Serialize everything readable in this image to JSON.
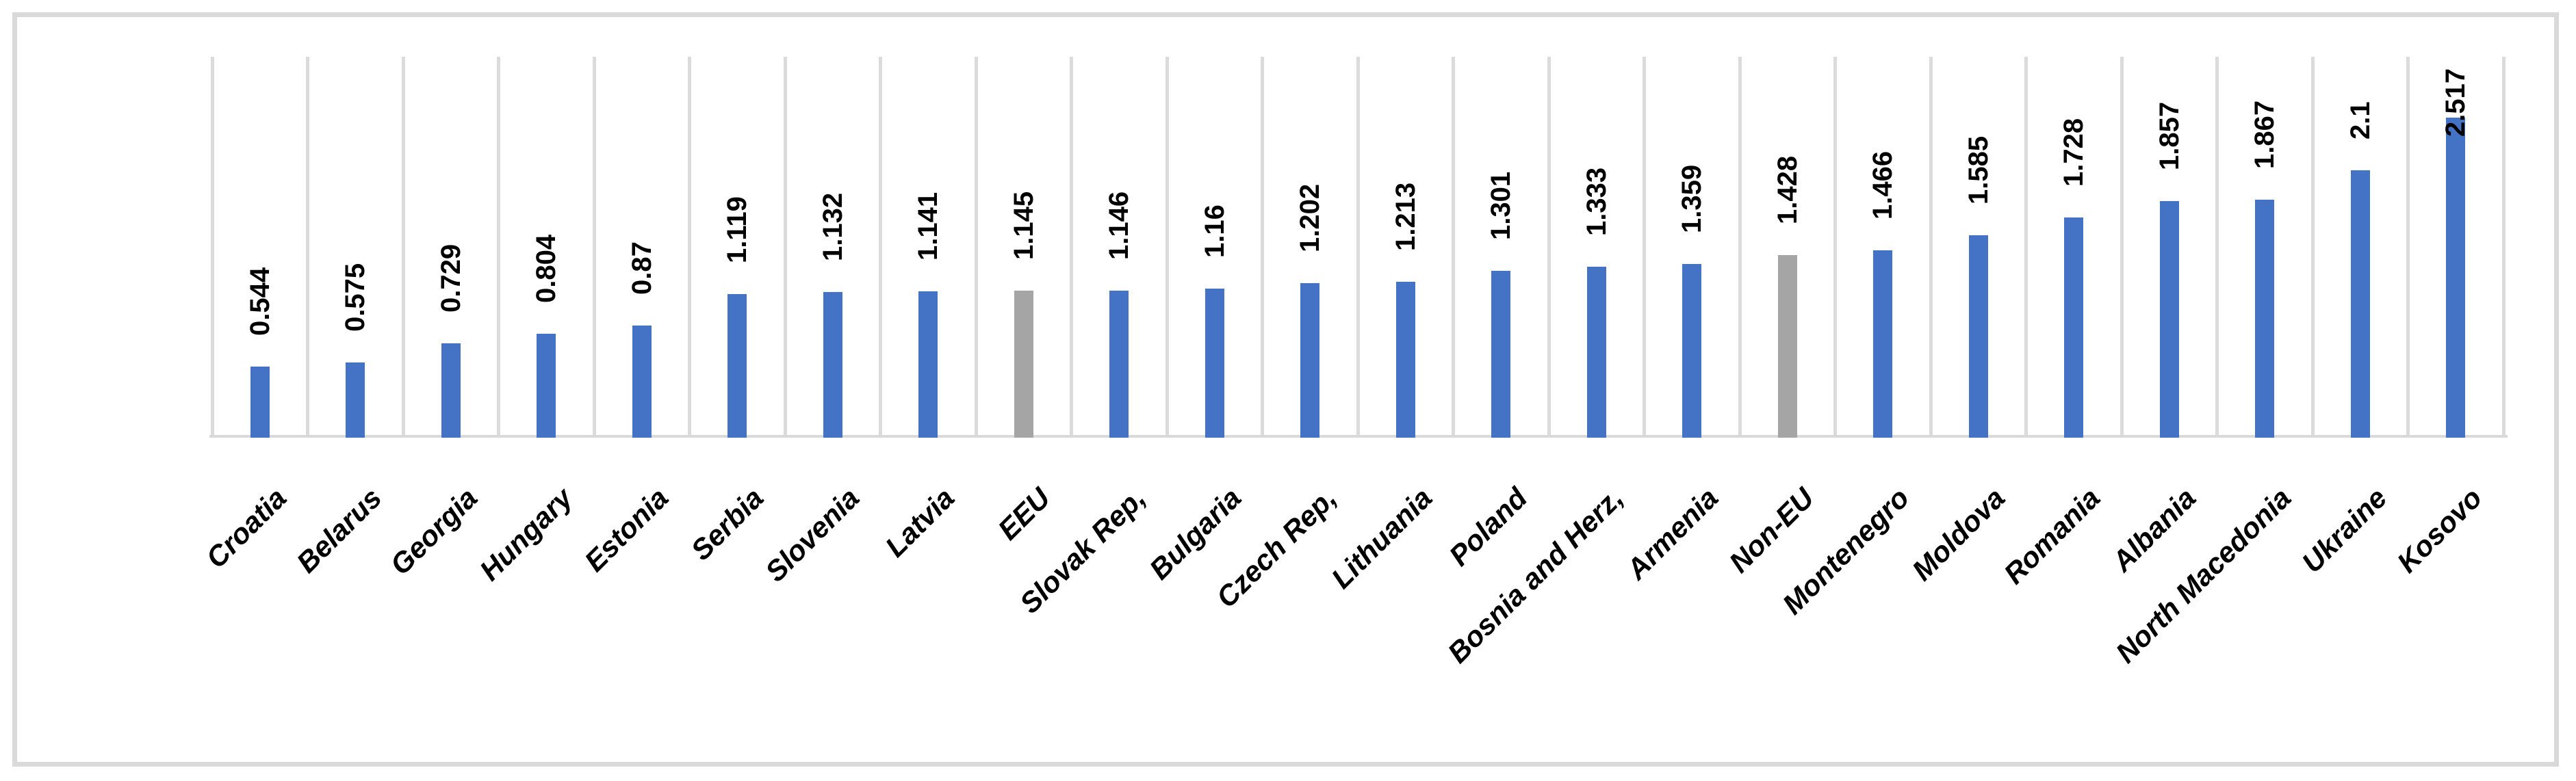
{
  "chart_data": {
    "type": "bar",
    "title": "",
    "xlabel": "",
    "ylabel": "",
    "orientation": "vertical-bars",
    "legend": "none",
    "grid": "vertical category separator lines only",
    "ylim": [
      0,
      3
    ],
    "categories": [
      "Croatia",
      "Belarus",
      "Georgia",
      "Hungary",
      "Estonia",
      "Serbia",
      "Slovenia",
      "Latvia",
      "EEU",
      "Slovak Rep,",
      "Bulgaria",
      "Czech Rep,",
      "Lithuania",
      "Poland",
      "Bosnia and Herz,",
      "Armenia",
      "Non-EU",
      "Montenegro",
      "Moldova",
      "Romania",
      "Albania",
      "North Macedonia",
      "Ukraine",
      "Kosovo"
    ],
    "values": [
      0.544,
      0.575,
      0.729,
      0.804,
      0.87,
      1.119,
      1.132,
      1.141,
      1.145,
      1.146,
      1.16,
      1.202,
      1.213,
      1.301,
      1.333,
      1.359,
      1.428,
      1.466,
      1.585,
      1.728,
      1.857,
      1.867,
      2.1,
      2.517
    ],
    "value_labels": [
      "0.544",
      "0.575",
      "0.729",
      "0.804",
      "0.87",
      "1.119",
      "1.132",
      "1.141",
      "1.145",
      "1.146",
      "1.16",
      "1.202",
      "1.213",
      "1.301",
      "1.333",
      "1.359",
      "1.428",
      "1.466",
      "1.585",
      "1.728",
      "1.857",
      "1.867",
      "2.1",
      "2.517"
    ],
    "aggregate_categories": [
      "EEU",
      "Non-EU"
    ],
    "colors": {
      "bar_default": "#4472C4",
      "bar_aggregate": "#A5A5A5",
      "gridline": "#DBDBDB",
      "axis_line": "#D9D9D9",
      "frame_border": "#D9D9D9",
      "label_text": "#000000",
      "background": "#FFFFFF"
    }
  }
}
